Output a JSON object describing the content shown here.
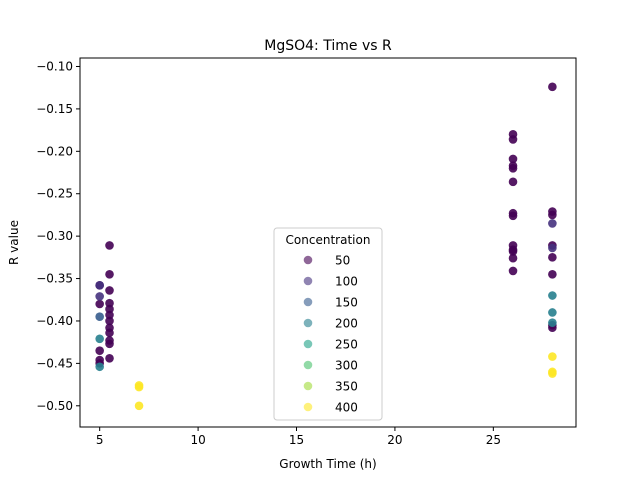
{
  "chart_data": {
    "type": "scatter",
    "title": "MgSO4: Time vs R",
    "xlabel": "Growth Time (h)",
    "ylabel": "R value",
    "xlim": [
      4.0,
      29.2
    ],
    "ylim": [
      -0.525,
      -0.09
    ],
    "xticks": [
      5,
      10,
      15,
      20,
      25
    ],
    "xtick_labels": [
      "5",
      "10",
      "15",
      "20",
      "25"
    ],
    "yticks": [
      -0.1,
      -0.15,
      -0.2,
      -0.25,
      -0.3,
      -0.35,
      -0.4,
      -0.45,
      -0.5
    ],
    "ytick_labels": [
      "−0.10",
      "−0.15",
      "−0.20",
      "−0.25",
      "−0.30",
      "−0.35",
      "−0.40",
      "−0.45",
      "−0.50"
    ],
    "grid": false,
    "legend": {
      "title": "Concentration",
      "placement": "lower center"
    },
    "colormap": "viridis",
    "marker_alpha": 0.9,
    "series": [
      {
        "name": "50",
        "color": "#440154",
        "points": [
          [
            5.0,
            -0.358
          ],
          [
            5.0,
            -0.38
          ],
          [
            5.0,
            -0.435
          ],
          [
            5.0,
            -0.446
          ],
          [
            5.0,
            -0.45
          ],
          [
            5.5,
            -0.311
          ],
          [
            5.5,
            -0.345
          ],
          [
            5.5,
            -0.364
          ],
          [
            5.5,
            -0.379
          ],
          [
            5.5,
            -0.386
          ],
          [
            5.5,
            -0.393
          ],
          [
            5.5,
            -0.4
          ],
          [
            5.5,
            -0.408
          ],
          [
            5.5,
            -0.414
          ],
          [
            5.5,
            -0.423
          ],
          [
            5.5,
            -0.427
          ],
          [
            5.5,
            -0.444
          ],
          [
            26.0,
            -0.18
          ],
          [
            26.0,
            -0.186
          ],
          [
            26.0,
            -0.209
          ],
          [
            26.0,
            -0.217
          ],
          [
            26.0,
            -0.22
          ],
          [
            26.0,
            -0.236
          ],
          [
            26.0,
            -0.273
          ],
          [
            26.0,
            -0.276
          ],
          [
            26.0,
            -0.311
          ],
          [
            26.0,
            -0.316
          ],
          [
            26.0,
            -0.318
          ],
          [
            26.0,
            -0.326
          ],
          [
            26.0,
            -0.341
          ],
          [
            28.0,
            -0.124
          ],
          [
            28.0,
            -0.271
          ],
          [
            28.0,
            -0.275
          ],
          [
            28.0,
            -0.311
          ],
          [
            28.0,
            -0.325
          ],
          [
            28.0,
            -0.345
          ],
          [
            28.0,
            -0.405
          ],
          [
            28.0,
            -0.408
          ]
        ]
      },
      {
        "name": "100",
        "color": "#46327e",
        "points": [
          [
            5.0,
            -0.358
          ],
          [
            5.0,
            -0.371
          ],
          [
            28.0,
            -0.285
          ],
          [
            28.0,
            -0.314
          ]
        ]
      },
      {
        "name": "150",
        "color": "#365c8d",
        "points": [
          [
            5.0,
            -0.395
          ]
        ]
      },
      {
        "name": "200",
        "color": "#277f8e",
        "points": [
          [
            5.0,
            -0.421
          ],
          [
            5.0,
            -0.454
          ],
          [
            28.0,
            -0.37
          ],
          [
            28.0,
            -0.39
          ],
          [
            28.0,
            -0.402
          ]
        ]
      },
      {
        "name": "250",
        "color": "#1fa187",
        "points": []
      },
      {
        "name": "300",
        "color": "#4ac16d",
        "points": []
      },
      {
        "name": "350",
        "color": "#a0da39",
        "points": []
      },
      {
        "name": "400",
        "color": "#fde725",
        "points": [
          [
            7.0,
            -0.476
          ],
          [
            7.0,
            -0.478
          ],
          [
            7.0,
            -0.5
          ],
          [
            28.0,
            -0.442
          ],
          [
            28.0,
            -0.46
          ],
          [
            28.0,
            -0.462
          ]
        ]
      }
    ]
  }
}
